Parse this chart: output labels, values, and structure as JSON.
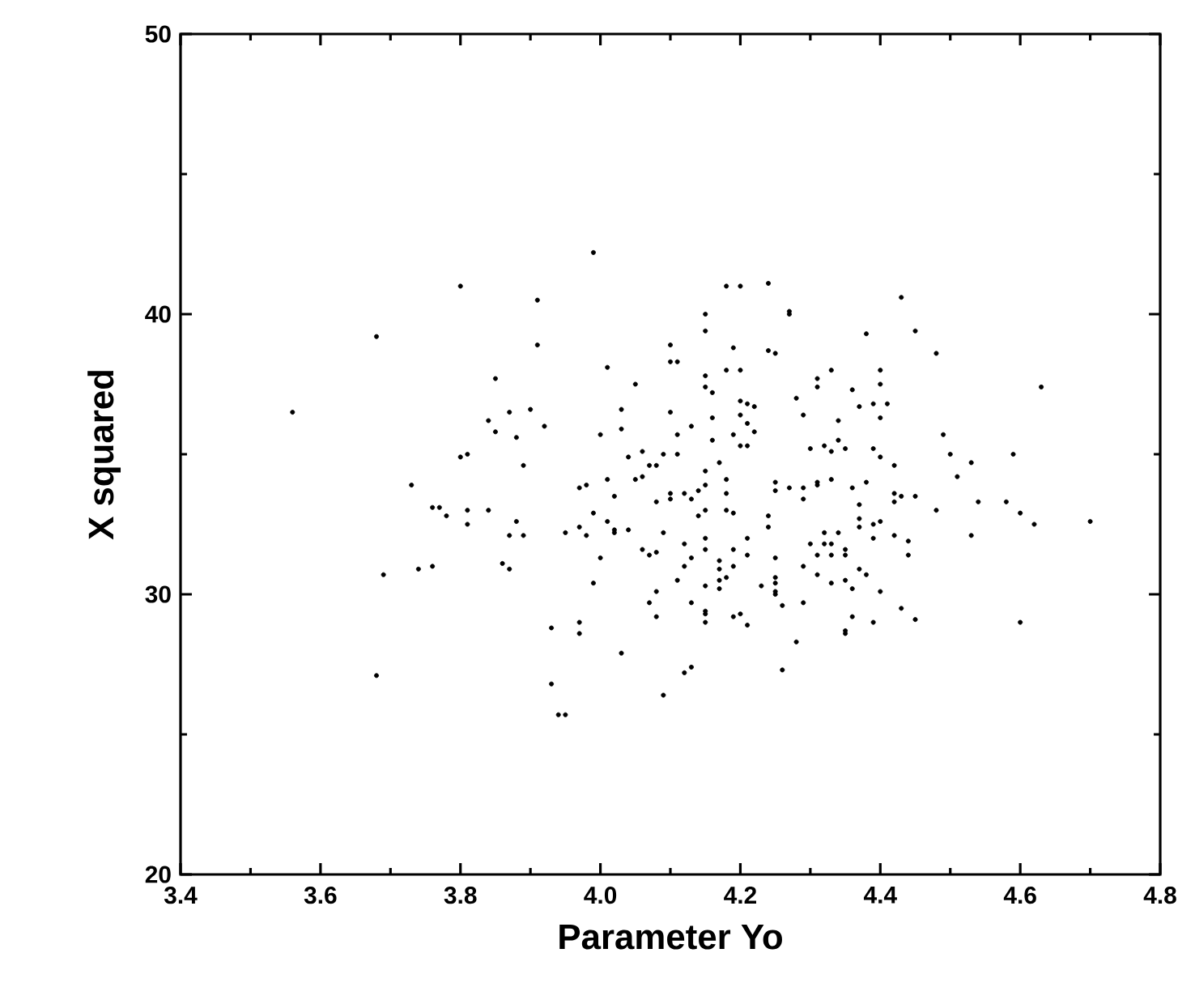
{
  "chart_data": {
    "type": "scatter",
    "xlabel": "Parameter Yo",
    "ylabel": "X squared",
    "xlim": [
      3.4,
      4.8
    ],
    "ylim": [
      20,
      50
    ],
    "xticks": [
      3.4,
      3.6,
      3.8,
      {
        "value": 4,
        "label": "4.0"
      },
      4.2,
      4.4,
      4.6,
      4.8
    ],
    "yticks": [
      20,
      30,
      40,
      50
    ],
    "marker": "circle",
    "grid": false,
    "color": "#000000",
    "x": [
      3.99,
      3.8,
      3.91,
      3.68,
      3.91,
      4.1,
      4.1,
      4.11,
      4.01,
      3.85,
      4.05,
      3.56,
      3.87,
      3.9,
      4.03,
      4.1,
      3.84,
      3.92,
      3.85,
      3.88,
      4.0,
      4.03,
      4.11,
      4.13,
      3.8,
      3.81,
      3.89,
      4.04,
      4.06,
      4.07,
      4.08,
      4.09,
      4.11,
      4.01,
      4.05,
      4.06,
      3.73,
      3.98,
      4.18,
      4.2,
      4.24,
      4.15,
      4.15,
      4.27,
      4.27,
      4.43,
      4.19,
      4.24,
      4.25,
      4.38,
      4.45,
      4.48,
      4.15,
      4.18,
      4.2,
      4.15,
      4.16,
      4.31,
      4.33,
      4.31,
      4.28,
      4.36,
      4.4,
      4.4,
      4.39,
      4.41,
      4.37,
      4.4,
      4.63,
      4.2,
      4.21,
      4.22,
      4.2,
      4.16,
      4.21,
      4.29,
      4.34,
      4.19,
      4.22,
      4.16,
      4.2,
      4.21,
      4.3,
      4.32,
      4.33,
      4.34,
      4.35,
      4.39,
      4.4,
      4.42,
      4.49,
      4.5,
      4.53,
      4.59,
      4.51,
      4.17,
      4.15,
      4.18,
      4.25,
      4.31,
      4.33,
      4.38,
      3.76,
      3.77,
      3.78,
      3.81,
      3.81,
      3.84,
      3.88,
      3.87,
      3.89,
      3.69,
      3.74,
      3.76,
      3.86,
      3.87,
      3.68,
      3.93,
      3.94,
      3.95,
      3.93,
      3.97,
      3.97,
      4.03,
      4.09,
      4.12,
      4.13,
      3.99,
      4.0,
      3.95,
      3.97,
      3.98,
      3.99,
      3.97,
      4.02,
      4.01,
      4.02,
      4.02,
      4.04,
      4.08,
      4.1,
      4.1,
      4.12,
      4.13,
      4.09,
      4.06,
      4.07,
      4.08,
      4.12,
      4.12,
      4.13,
      4.11,
      4.08,
      4.07,
      4.08,
      4.13,
      4.18,
      4.14,
      4.15,
      4.15,
      4.14,
      4.18,
      4.19,
      4.25,
      4.27,
      4.29,
      4.29,
      4.31,
      4.36,
      4.37,
      4.37,
      4.37,
      4.39,
      4.4,
      4.39,
      4.42,
      4.43,
      4.42,
      4.45,
      4.48,
      4.54,
      4.58,
      4.6,
      4.62,
      4.7,
      4.53,
      4.42,
      4.44,
      4.44,
      4.43,
      4.45,
      4.6,
      4.4,
      4.39,
      4.36,
      4.35,
      4.35,
      4.37,
      4.38,
      4.36,
      4.35,
      4.33,
      4.31,
      4.29,
      4.3,
      4.31,
      4.32,
      4.32,
      4.33,
      4.33,
      4.34,
      4.35,
      4.35,
      4.29,
      4.28,
      4.26,
      4.26,
      4.25,
      4.25,
      4.25,
      4.25,
      4.25,
      4.24,
      4.24,
      4.23,
      4.21,
      4.2,
      4.19,
      4.21,
      4.21,
      4.19,
      4.19,
      4.18,
      4.17,
      4.17,
      4.17,
      4.17,
      4.15,
      4.15,
      4.15,
      4.15,
      4.15,
      4.15
    ],
    "values": [
      42.2,
      41.0,
      40.5,
      39.2,
      38.9,
      38.9,
      38.3,
      38.3,
      38.1,
      37.7,
      37.5,
      36.5,
      36.5,
      36.6,
      36.6,
      36.5,
      36.2,
      36.0,
      35.8,
      35.6,
      35.7,
      35.9,
      35.7,
      36.0,
      34.9,
      35.0,
      34.6,
      34.9,
      35.1,
      34.6,
      34.6,
      35.0,
      35.0,
      34.1,
      34.1,
      34.2,
      33.9,
      33.9,
      41.0,
      41.0,
      41.1,
      40.0,
      39.4,
      40.1,
      40.0,
      40.6,
      38.8,
      38.7,
      38.6,
      39.3,
      39.4,
      38.6,
      37.8,
      38.0,
      38.0,
      37.4,
      37.2,
      37.7,
      38.0,
      37.4,
      37.0,
      37.3,
      38.0,
      37.5,
      36.8,
      36.8,
      36.7,
      36.3,
      37.4,
      36.9,
      36.8,
      36.7,
      36.4,
      36.3,
      36.1,
      36.4,
      36.2,
      35.7,
      35.8,
      35.5,
      35.3,
      35.3,
      35.2,
      35.3,
      35.1,
      35.5,
      35.2,
      35.2,
      34.9,
      34.6,
      35.7,
      35.0,
      34.7,
      35.0,
      34.2,
      34.7,
      34.4,
      34.1,
      34.0,
      34.0,
      34.1,
      34.0,
      33.1,
      33.1,
      32.8,
      33.0,
      32.5,
      33.0,
      32.6,
      32.1,
      32.1,
      30.7,
      30.9,
      31.0,
      31.1,
      30.9,
      27.1,
      26.8,
      25.7,
      25.7,
      28.8,
      29.0,
      28.6,
      27.9,
      26.4,
      27.2,
      27.4,
      30.4,
      31.3,
      32.2,
      32.4,
      32.1,
      32.9,
      33.8,
      33.5,
      32.6,
      32.3,
      32.2,
      32.3,
      33.3,
      33.6,
      33.4,
      33.6,
      33.4,
      32.2,
      31.6,
      31.4,
      31.5,
      31.8,
      31.0,
      31.3,
      30.5,
      30.1,
      29.7,
      29.2,
      29.7,
      33.6,
      33.7,
      33.9,
      33.0,
      32.8,
      33.0,
      32.9,
      33.7,
      33.8,
      33.8,
      33.4,
      33.9,
      33.8,
      33.2,
      32.7,
      32.4,
      32.5,
      32.6,
      32.0,
      33.6,
      33.5,
      33.3,
      33.5,
      33.0,
      33.3,
      33.3,
      32.9,
      32.5,
      32.6,
      32.1,
      32.1,
      31.9,
      31.4,
      29.5,
      29.1,
      29.0,
      30.1,
      29.0,
      29.2,
      28.7,
      28.6,
      30.9,
      30.7,
      30.2,
      30.5,
      30.4,
      30.7,
      31.0,
      31.8,
      31.4,
      31.8,
      32.2,
      31.4,
      31.8,
      32.2,
      31.4,
      31.6,
      29.7,
      28.3,
      27.3,
      29.6,
      30.6,
      30.4,
      30.1,
      30.0,
      31.3,
      32.8,
      32.4,
      30.3,
      28.9,
      29.3,
      29.2,
      32.0,
      31.4,
      31.6,
      31.0,
      30.6,
      30.2,
      30.5,
      31.2,
      30.9,
      32.0,
      31.6,
      30.3,
      29.4,
      29.3,
      29.0
    ]
  }
}
